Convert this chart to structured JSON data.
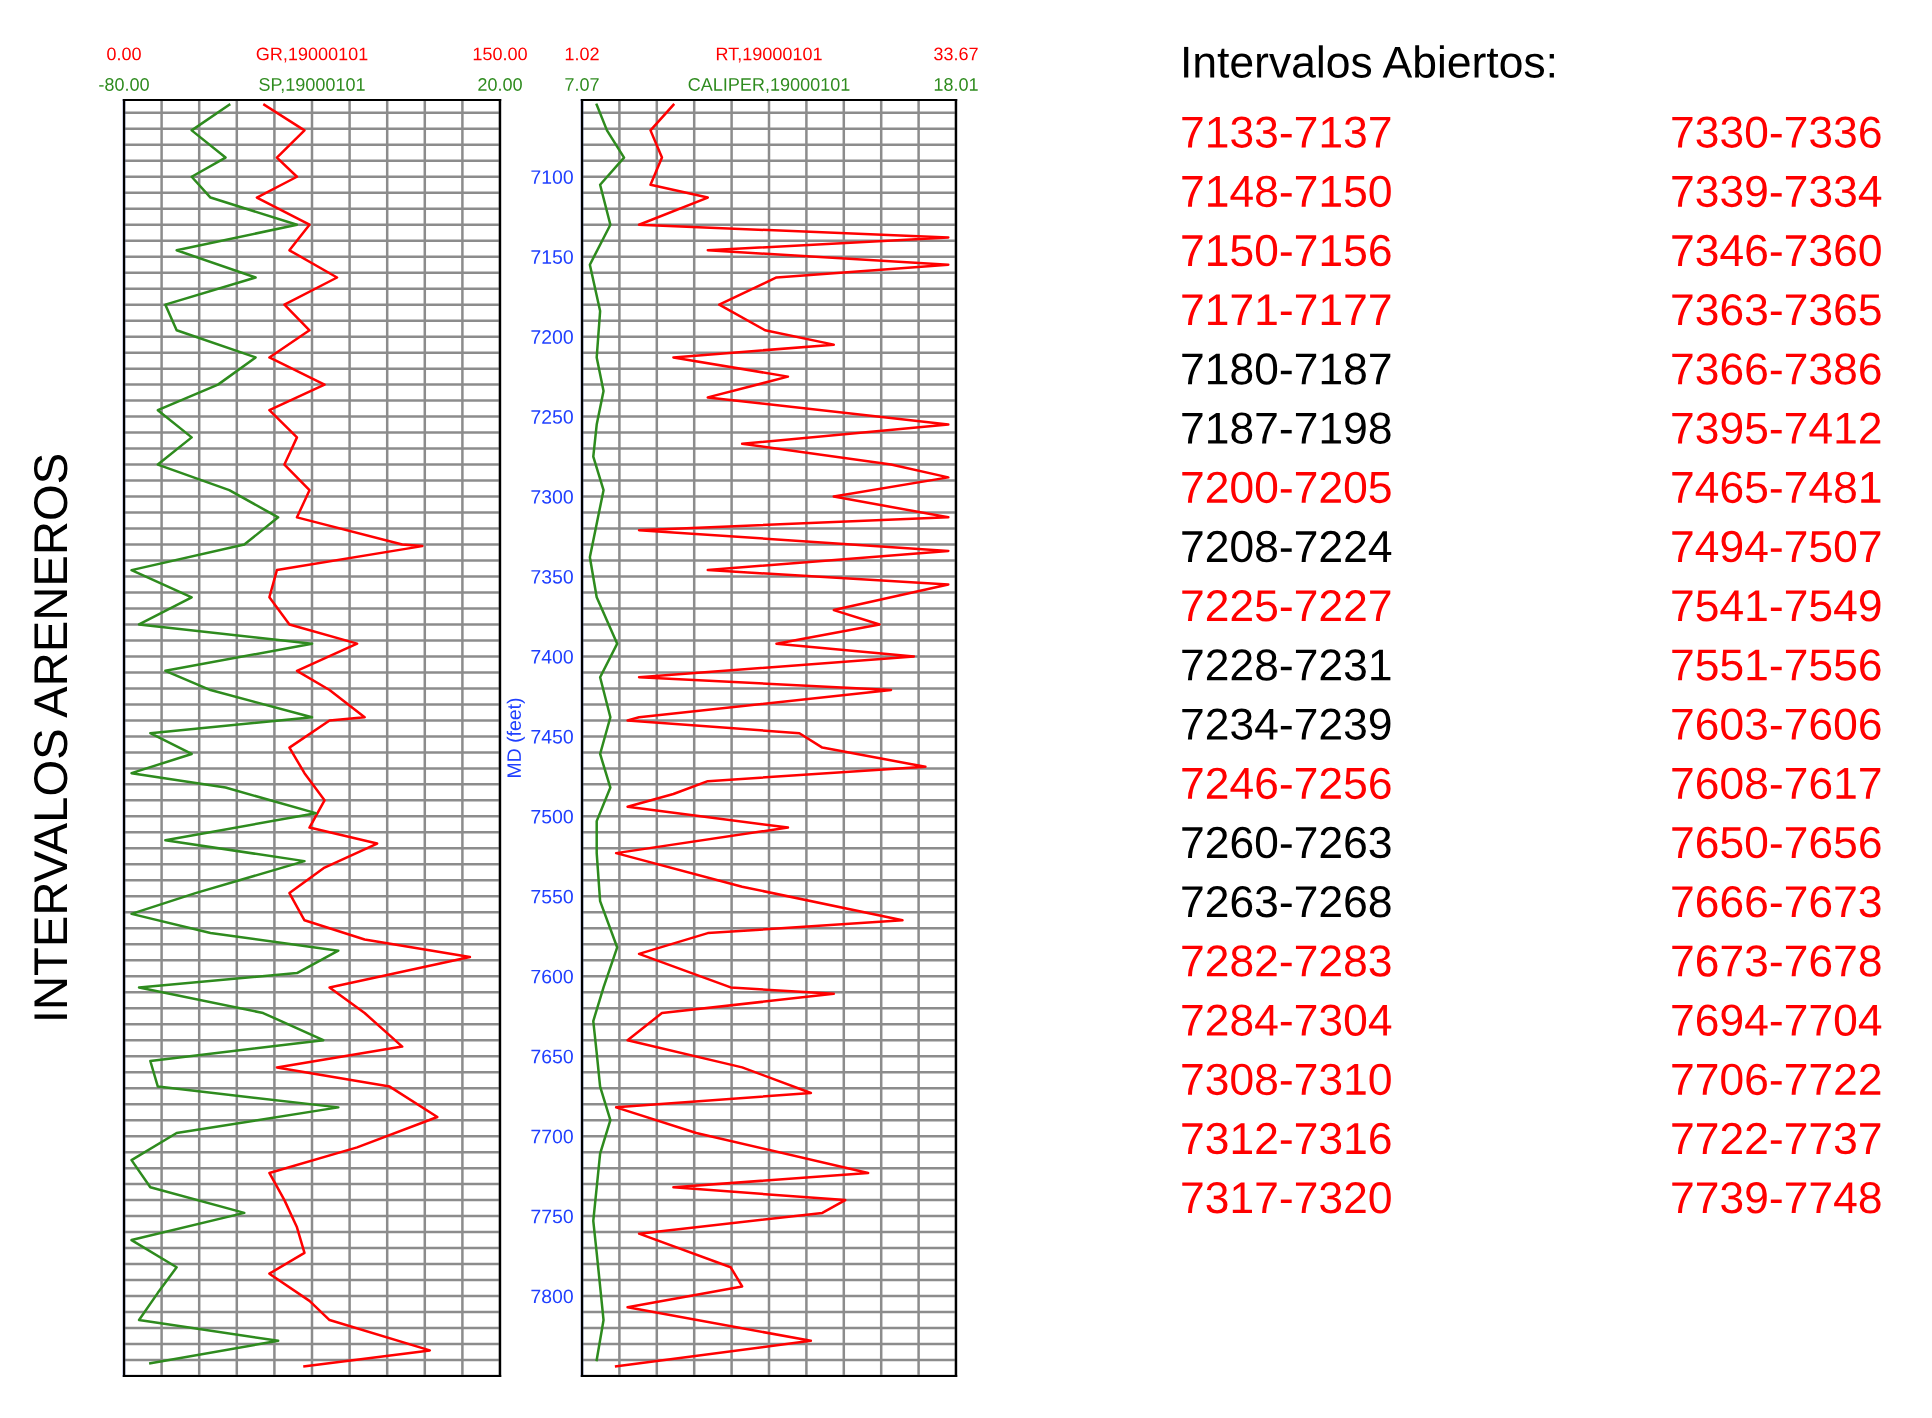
{
  "chart_data": [
    {
      "type": "line",
      "orientation": "horizontal",
      "ylabel": "INTERVALOS ARENEROS",
      "tick_labels": "x",
      "grid": true,
      "xlim": [
        0,
        150
      ],
      "xticks": [
        {
          "value": 0,
          "label": "0.00"
        },
        {
          "value": 15,
          "label": null
        },
        {
          "value": 30,
          "label": null
        },
        {
          "value": 45,
          "label": null
        },
        {
          "value": 60,
          "label": null
        },
        {
          "value": 75,
          "label": null
        },
        {
          "value": 90,
          "label": null
        },
        {
          "value": 105,
          "label": null
        },
        {
          "value": 120,
          "label": null
        },
        {
          "value": 135,
          "label": null
        },
        {
          "value": 150,
          "label": "150.00"
        }
      ],
      "x2lim": [
        -80,
        20
      ],
      "x2ticks": [
        {
          "value": -80,
          "label": "-80.00"
        },
        {
          "value": 20,
          "label": "20.00"
        }
      ],
      "ylim": [
        7850,
        7052
      ],
      "yticks": [
        7100,
        7150,
        7200,
        7250,
        7300,
        7350,
        7400,
        7450,
        7500,
        7550,
        7600,
        7650,
        7700,
        7750,
        7800
      ],
      "series": [
        {
          "name": "GR,19000101",
          "color": "#ff0000",
          "x": [
            7055,
            7071,
            7088,
            7100,
            7113,
            7130,
            7146,
            7163,
            7180,
            7196,
            7213,
            7230,
            7246,
            7263,
            7280,
            7296,
            7313,
            7330,
            7331,
            7346,
            7363,
            7380,
            7392,
            7409,
            7421,
            7438,
            7440,
            7457,
            7473,
            7490,
            7507,
            7517,
            7532,
            7548,
            7565,
            7577,
            7588,
            7607,
            7623,
            7644,
            7657,
            7669,
            7688,
            7707,
            7723,
            7740,
            7757,
            7773,
            7786,
            7803,
            7815,
            7834,
            7844
          ],
          "values": [
            56,
            72,
            61,
            69,
            53,
            74,
            66,
            85,
            64,
            74,
            58,
            80,
            58,
            69,
            64,
            74,
            69,
            111,
            119,
            61,
            58,
            66,
            93,
            69,
            82,
            96,
            82,
            66,
            72,
            80,
            74,
            101,
            80,
            66,
            72,
            96,
            138,
            82,
            96,
            111,
            61,
            106,
            125,
            93,
            58,
            64,
            69,
            72,
            58,
            74,
            82,
            122,
            72
          ]
        },
        {
          "name": "SP,19000101",
          "color": "#2e8b1e",
          "axis": "x2",
          "x": [
            7055,
            7071,
            7088,
            7100,
            7113,
            7130,
            7146,
            7163,
            7180,
            7196,
            7213,
            7230,
            7246,
            7263,
            7280,
            7296,
            7313,
            7330,
            7346,
            7363,
            7380,
            7392,
            7409,
            7421,
            7438,
            7448,
            7461,
            7473,
            7482,
            7498,
            7515,
            7528,
            7548,
            7561,
            7573,
            7584,
            7598,
            7607,
            7623,
            7640,
            7653,
            7669,
            7682,
            7698,
            7715,
            7732,
            7748,
            7765,
            7782,
            7798,
            7815,
            7828,
            7842
          ],
          "values": [
            -52,
            -62,
            -53,
            -62,
            -57,
            -34,
            -66,
            -45,
            -69,
            -66,
            -45,
            -55,
            -71,
            -62,
            -71,
            -52,
            -39,
            -48,
            -78,
            -62,
            -76,
            -30,
            -69,
            -57,
            -30,
            -73,
            -62,
            -78,
            -53,
            -29,
            -69,
            -32,
            -61,
            -78,
            -57,
            -23,
            -34,
            -76,
            -43,
            -27,
            -73,
            -71,
            -23,
            -66,
            -78,
            -73,
            -48,
            -78,
            -66,
            -71,
            -76,
            -39,
            -73
          ]
        }
      ]
    },
    {
      "type": "line",
      "orientation": "horizontal",
      "ylabel": "MD (feet)",
      "grid": true,
      "xlim": [
        1.02,
        33.67
      ],
      "xticks": [
        {
          "value": 1.02,
          "label": "1.02"
        },
        {
          "value": 4.285,
          "label": null
        },
        {
          "value": 7.55,
          "label": null
        },
        {
          "value": 10.815,
          "label": null
        },
        {
          "value": 14.08,
          "label": null
        },
        {
          "value": 17.345,
          "label": null
        },
        {
          "value": 20.61,
          "label": null
        },
        {
          "value": 23.875,
          "label": null
        },
        {
          "value": 27.14,
          "label": null
        },
        {
          "value": 30.405,
          "label": null
        },
        {
          "value": 33.67,
          "label": "33.67"
        }
      ],
      "x2lim": [
        7.07,
        18.01
      ],
      "x2ticks": [
        {
          "value": 7.07,
          "label": "7.07"
        },
        {
          "value": 18.01,
          "label": "18.01"
        }
      ],
      "ylim": [
        7850,
        7052
      ],
      "yticks": [
        7100,
        7150,
        7200,
        7250,
        7300,
        7350,
        7400,
        7450,
        7500,
        7550,
        7600,
        7650,
        7700,
        7750,
        7800
      ],
      "series": [
        {
          "name": "RT,19000101",
          "color": "#ff0000",
          "x": [
            7055,
            7071,
            7088,
            7105,
            7113,
            7130,
            7138,
            7146,
            7155,
            7163,
            7180,
            7196,
            7205,
            7213,
            7225,
            7238,
            7255,
            7267,
            7280,
            7288,
            7300,
            7313,
            7321,
            7334,
            7346,
            7355,
            7371,
            7380,
            7392,
            7400,
            7413,
            7421,
            7438,
            7440,
            7448,
            7457,
            7469,
            7478,
            7486,
            7494,
            7507,
            7523,
            7544,
            7565,
            7573,
            7586,
            7607,
            7611,
            7623,
            7640,
            7657,
            7673,
            7682,
            7698,
            7723,
            7732,
            7740,
            7748,
            7761,
            7782,
            7794,
            7807,
            7828,
            7844
          ],
          "values": [
            9,
            7,
            8,
            7,
            12,
            6,
            33,
            12,
            33,
            18,
            13,
            17,
            23,
            9,
            19,
            12,
            33,
            15,
            28,
            33,
            23,
            33,
            6,
            33,
            12,
            33,
            23,
            27,
            18,
            30,
            6,
            28,
            6,
            5,
            20,
            22,
            31,
            12,
            9,
            5,
            19,
            4,
            15,
            29,
            12,
            6,
            14,
            23,
            8,
            5,
            15,
            21,
            4,
            11,
            26,
            9,
            24,
            22,
            6,
            14,
            15,
            5,
            21,
            4
          ]
        },
        {
          "name": "CALIPER,19000101",
          "color": "#2e8b1e",
          "axis": "x2",
          "x": [
            7055,
            7071,
            7088,
            7105,
            7130,
            7155,
            7184,
            7213,
            7234,
            7255,
            7275,
            7296,
            7317,
            7338,
            7363,
            7392,
            7413,
            7438,
            7461,
            7482,
            7503,
            7523,
            7553,
            7582,
            7607,
            7628,
            7648,
            7669,
            7690,
            7711,
            7732,
            7753,
            7773,
            7794,
            7815,
            7840
          ],
          "values": [
            7.5,
            7.8,
            8.3,
            7.6,
            7.9,
            7.3,
            7.6,
            7.5,
            7.7,
            7.5,
            7.4,
            7.7,
            7.5,
            7.3,
            7.5,
            8.1,
            7.6,
            7.9,
            7.6,
            7.9,
            7.5,
            7.5,
            7.6,
            8.1,
            7.7,
            7.4,
            7.5,
            7.6,
            7.9,
            7.6,
            7.5,
            7.4,
            7.5,
            7.6,
            7.7,
            7.5
          ]
        }
      ]
    },
    {
      "type": "other",
      "title": "Intervalos Abiertos:",
      "annotations": [
        "7133-7137",
        "7148-7150",
        "7150-7156",
        "7171-7177",
        "7180-7187",
        "7187-7198",
        "7200-7205",
        "7208-7224",
        "7225-7227",
        "7228-7231",
        "7234-7239",
        "7246-7256",
        "7260-7263",
        "7263-7268",
        "7282-7283",
        "7284-7304",
        "7308-7310",
        "7312-7316",
        "7317-7320",
        "7330-7336",
        "7339-7334",
        "7346-7360",
        "7363-7365",
        "7366-7386",
        "7395-7412",
        "7465-7481",
        "7494-7507",
        "7541-7549",
        "7551-7556",
        "7603-7606",
        "7608-7617",
        "7650-7656",
        "7666-7673",
        "7673-7678",
        "7694-7704",
        "7706-7722",
        "7722-7737",
        "7739-7748"
      ],
      "colors": [
        "#ff0000",
        "#ff0000",
        "#ff0000",
        "#ff0000",
        "#000000",
        "#000000",
        "#ff0000",
        "#000000",
        "#ff0000",
        "#000000",
        "#000000",
        "#ff0000",
        "#000000",
        "#000000",
        "#ff0000",
        "#ff0000",
        "#ff0000",
        "#ff0000",
        "#ff0000",
        "#ff0000",
        "#ff0000",
        "#ff0000",
        "#ff0000",
        "#ff0000",
        "#ff0000",
        "#ff0000",
        "#ff0000",
        "#ff0000",
        "#ff0000",
        "#ff0000",
        "#ff0000",
        "#ff0000",
        "#ff0000",
        "#ff0000",
        "#ff0000",
        "#ff0000",
        "#ff0000",
        "#ff0000"
      ]
    }
  ]
}
